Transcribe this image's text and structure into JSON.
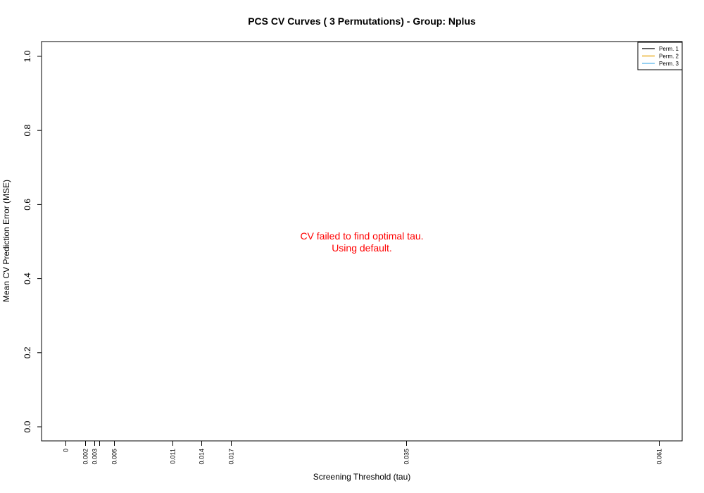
{
  "chart_data": {
    "type": "line",
    "title": "PCS CV Curves ( 3  Permutations) - Group: Nplus",
    "xlabel": "Screening Threshold (tau)",
    "ylabel": "Mean CV Prediction Error (MSE)",
    "xlim": [
      0,
      0.061
    ],
    "ylim": [
      0,
      1
    ],
    "x_ticks": [
      {
        "value": 0,
        "label": "0"
      },
      {
        "value": 0.002,
        "label": "0.002"
      },
      {
        "value": 0.003,
        "label": "0.003"
      },
      {
        "value": 0.0035,
        "label": ""
      },
      {
        "value": 0.005,
        "label": "0.005"
      },
      {
        "value": 0.011,
        "label": "0.011"
      },
      {
        "value": 0.014,
        "label": "0.014"
      },
      {
        "value": 0.017,
        "label": "0.017"
      },
      {
        "value": 0.035,
        "label": "0.035"
      },
      {
        "value": 0.061,
        "label": "0.061"
      }
    ],
    "y_ticks": [
      {
        "value": 0,
        "label": "0.0"
      },
      {
        "value": 0.2,
        "label": "0.2"
      },
      {
        "value": 0.4,
        "label": "0.4"
      },
      {
        "value": 0.6,
        "label": "0.6"
      },
      {
        "value": 0.8,
        "label": "0.8"
      },
      {
        "value": 1.0,
        "label": "1.0"
      }
    ],
    "series": [
      {
        "name": "Perm. 1",
        "color": "#000000",
        "values": []
      },
      {
        "name": "Perm. 2",
        "color": "#E69F00",
        "values": []
      },
      {
        "name": "Perm. 3",
        "color": "#56B4E9",
        "values": []
      }
    ],
    "legend_position": "top-right",
    "grid": false,
    "annotation": {
      "lines": [
        "CV failed to find optimal tau.",
        "Using default."
      ],
      "color": "#ff0000"
    }
  }
}
